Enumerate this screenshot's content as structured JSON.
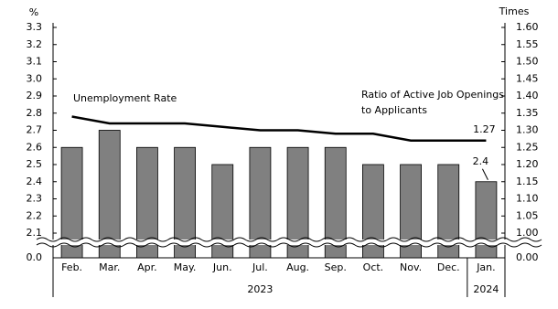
{
  "chart_data": {
    "type": "bar_line",
    "y_unit": "%",
    "y2_unit": "Times",
    "categories": [
      "Feb.",
      "Mar.",
      "Apr.",
      "May.",
      "Jun.",
      "Jul.",
      "Aug.",
      "Sep.",
      "Oct.",
      "Nov.",
      "Dec.",
      "Jan."
    ],
    "x_groups": [
      "2023",
      "2024"
    ],
    "series": [
      {
        "name": "Unemployment Rate",
        "type": "bar",
        "axis": "y",
        "color": "#808080",
        "values": [
          2.6,
          2.7,
          2.6,
          2.6,
          2.5,
          2.6,
          2.6,
          2.6,
          2.5,
          2.5,
          2.5,
          2.4
        ]
      },
      {
        "name": [
          "Ratio of Active Job Openings",
          "to Applicants"
        ],
        "type": "line",
        "axis": "y2",
        "color": "#000000",
        "values": [
          1.34,
          1.32,
          1.32,
          1.32,
          1.31,
          1.3,
          1.3,
          1.29,
          1.29,
          1.27,
          1.27,
          1.27
        ]
      }
    ],
    "ylim": [
      2.1,
      3.3
    ],
    "yticks": [
      {
        "value": 0,
        "label": "0.0"
      },
      2.1,
      2.2,
      2.3,
      2.4,
      2.5,
      2.6,
      2.7,
      2.8,
      2.9,
      {
        "value": 3,
        "label": "3.0"
      },
      3.1,
      3.2,
      3.3
    ],
    "y2lim": [
      1.0,
      1.6
    ],
    "y2ticks": [
      {
        "value": 0,
        "label": "0.00"
      },
      {
        "value": 1,
        "label": "1.00"
      },
      1.05,
      {
        "value": 1.1,
        "label": "1.10"
      },
      1.15,
      {
        "value": 1.2,
        "label": "1.20"
      },
      1.25,
      {
        "value": 1.3,
        "label": "1.30"
      },
      1.35,
      {
        "value": 1.4,
        "label": "1.40"
      },
      1.45,
      {
        "value": 1.5,
        "label": "1.50"
      },
      1.55,
      {
        "value": 1.6,
        "label": "1.60"
      }
    ],
    "axis_break": true,
    "grid": false
  }
}
